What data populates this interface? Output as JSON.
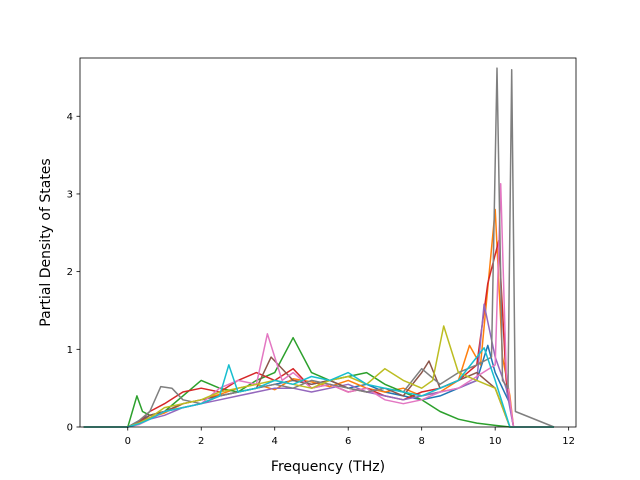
{
  "chart_data": {
    "type": "line",
    "title": "",
    "xlabel": "Frequency (THz)",
    "ylabel": "Partial Density of States",
    "xlim": [
      -1.3,
      12.2
    ],
    "ylim": [
      0,
      4.75
    ],
    "x_ticks": [
      0,
      2,
      4,
      6,
      8,
      10,
      12
    ],
    "y_ticks": [
      0,
      1,
      2,
      3,
      4
    ],
    "grid": false,
    "legend": "none",
    "colors": [
      "#1f77b4",
      "#ff7f0e",
      "#2ca02c",
      "#d62728",
      "#9467bd",
      "#8c564b",
      "#e377c2",
      "#7f7f7f",
      "#bcbd22",
      "#17becf"
    ],
    "series": [
      {
        "x": [
          -1.2,
          0.0,
          0.3,
          0.6,
          1.0,
          1.5,
          2.0,
          2.5,
          3.0,
          3.5,
          4.0,
          4.5,
          5.0,
          5.5,
          6.0,
          6.5,
          7.0,
          7.5,
          8.0,
          8.5,
          9.0,
          9.5,
          9.8,
          10.0,
          10.2,
          10.4,
          10.5,
          11.6
        ],
        "y": [
          0,
          0,
          0.08,
          0.15,
          0.2,
          0.25,
          0.3,
          0.4,
          0.45,
          0.5,
          0.55,
          0.6,
          0.55,
          0.6,
          0.5,
          0.55,
          0.45,
          0.4,
          0.35,
          0.4,
          0.5,
          0.6,
          1.05,
          0.7,
          0.5,
          0.3,
          0,
          0
        ]
      },
      {
        "x": [
          -1.2,
          0.0,
          0.3,
          0.6,
          1.0,
          1.5,
          2.0,
          2.5,
          3.0,
          3.5,
          4.0,
          4.5,
          5.0,
          5.5,
          6.0,
          6.5,
          7.0,
          7.5,
          8.0,
          8.5,
          9.0,
          9.3,
          9.6,
          10.0,
          10.2,
          10.4,
          10.5,
          11.6
        ],
        "y": [
          0,
          0,
          0.05,
          0.12,
          0.18,
          0.3,
          0.35,
          0.42,
          0.5,
          0.55,
          0.48,
          0.62,
          0.58,
          0.52,
          0.6,
          0.5,
          0.45,
          0.5,
          0.4,
          0.45,
          0.6,
          1.05,
          0.8,
          2.8,
          0.9,
          0.4,
          0,
          0
        ]
      },
      {
        "x": [
          -1.2,
          0.0,
          0.25,
          0.4,
          0.6,
          1.0,
          1.5,
          2.0,
          2.5,
          3.0,
          3.5,
          4.0,
          4.5,
          5.0,
          5.5,
          6.0,
          6.5,
          7.0,
          7.5,
          8.0,
          8.5,
          9.0,
          9.5,
          10.0,
          10.4,
          11.6
        ],
        "y": [
          0,
          0,
          0.4,
          0.2,
          0.15,
          0.2,
          0.4,
          0.6,
          0.5,
          0.45,
          0.6,
          0.7,
          1.15,
          0.7,
          0.6,
          0.65,
          0.7,
          0.55,
          0.45,
          0.35,
          0.2,
          0.1,
          0.05,
          0.02,
          0,
          0
        ]
      },
      {
        "x": [
          -1.2,
          0.0,
          0.3,
          0.6,
          1.0,
          1.5,
          2.0,
          2.5,
          3.0,
          3.5,
          4.0,
          4.5,
          5.0,
          5.5,
          6.0,
          6.5,
          7.0,
          7.5,
          8.0,
          8.5,
          9.0,
          9.5,
          9.8,
          10.1,
          10.3,
          10.5,
          11.6
        ],
        "y": [
          0,
          0,
          0.06,
          0.2,
          0.3,
          0.45,
          0.5,
          0.45,
          0.6,
          0.7,
          0.6,
          0.75,
          0.5,
          0.55,
          0.45,
          0.5,
          0.4,
          0.35,
          0.45,
          0.5,
          0.6,
          0.8,
          1.85,
          2.4,
          0.6,
          0,
          0
        ]
      },
      {
        "x": [
          -1.2,
          0.0,
          0.3,
          0.6,
          1.0,
          1.5,
          2.0,
          2.5,
          3.0,
          3.5,
          4.0,
          4.5,
          5.0,
          5.5,
          6.0,
          6.5,
          7.0,
          7.5,
          8.0,
          8.5,
          9.0,
          9.5,
          9.7,
          10.0,
          10.3,
          10.5,
          11.6
        ],
        "y": [
          0,
          0,
          0.04,
          0.1,
          0.15,
          0.25,
          0.3,
          0.35,
          0.4,
          0.45,
          0.5,
          0.5,
          0.45,
          0.5,
          0.55,
          0.45,
          0.4,
          0.35,
          0.4,
          0.45,
          0.5,
          0.6,
          1.58,
          0.9,
          0.5,
          0,
          0
        ]
      },
      {
        "x": [
          -1.2,
          0.0,
          0.3,
          0.6,
          1.0,
          1.5,
          2.0,
          2.5,
          3.0,
          3.5,
          3.9,
          4.5,
          5.0,
          5.5,
          6.0,
          6.5,
          7.0,
          7.5,
          8.0,
          8.2,
          8.5,
          9.0,
          9.5,
          10.0,
          10.4,
          11.6
        ],
        "y": [
          0,
          0,
          0.05,
          0.15,
          0.2,
          0.3,
          0.35,
          0.4,
          0.45,
          0.5,
          0.9,
          0.6,
          0.55,
          0.6,
          0.5,
          0.45,
          0.5,
          0.4,
          0.7,
          0.85,
          0.5,
          0.6,
          0.7,
          0.5,
          0,
          0
        ]
      },
      {
        "x": [
          -1.2,
          0.0,
          0.3,
          0.6,
          1.0,
          1.5,
          2.0,
          2.5,
          3.0,
          3.5,
          3.8,
          4.2,
          4.5,
          5.0,
          5.5,
          6.0,
          6.5,
          7.0,
          7.5,
          8.0,
          8.5,
          9.0,
          9.5,
          10.0,
          10.15,
          10.3,
          10.5,
          11.6
        ],
        "y": [
          0,
          0,
          0.03,
          0.1,
          0.2,
          0.25,
          0.3,
          0.5,
          0.6,
          0.55,
          1.2,
          0.6,
          0.7,
          0.5,
          0.55,
          0.45,
          0.5,
          0.35,
          0.3,
          0.35,
          0.45,
          0.5,
          0.65,
          0.8,
          3.13,
          0.7,
          0,
          0
        ]
      },
      {
        "x": [
          -1.2,
          0.0,
          0.3,
          0.6,
          0.9,
          1.2,
          1.5,
          2.0,
          2.5,
          3.0,
          3.5,
          4.0,
          4.5,
          5.0,
          5.5,
          6.0,
          6.5,
          7.0,
          7.5,
          8.0,
          8.5,
          9.0,
          9.5,
          9.9,
          10.05,
          10.2,
          10.35,
          10.45,
          10.55,
          11.6
        ],
        "y": [
          0,
          0,
          0.08,
          0.2,
          0.52,
          0.5,
          0.35,
          0.3,
          0.4,
          0.45,
          0.5,
          0.55,
          0.5,
          0.6,
          0.55,
          0.5,
          0.45,
          0.5,
          0.45,
          0.75,
          0.55,
          0.7,
          0.8,
          0.9,
          4.62,
          0.6,
          0.5,
          4.6,
          0.2,
          0
        ]
      },
      {
        "x": [
          -1.2,
          0.0,
          0.3,
          0.6,
          1.0,
          1.5,
          2.0,
          2.5,
          3.0,
          3.5,
          4.0,
          4.5,
          5.0,
          5.5,
          6.0,
          6.5,
          7.0,
          7.5,
          8.0,
          8.3,
          8.6,
          9.0,
          9.5,
          10.0,
          10.4,
          11.6
        ],
        "y": [
          0,
          0,
          0.05,
          0.12,
          0.25,
          0.3,
          0.35,
          0.45,
          0.5,
          0.55,
          0.6,
          0.55,
          0.5,
          0.6,
          0.65,
          0.55,
          0.75,
          0.6,
          0.5,
          0.6,
          1.3,
          0.7,
          0.6,
          0.5,
          0,
          0
        ]
      },
      {
        "x": [
          -1.2,
          0.0,
          0.3,
          0.6,
          1.0,
          1.5,
          2.0,
          2.5,
          2.75,
          3.0,
          3.5,
          4.0,
          4.5,
          5.0,
          5.5,
          6.0,
          6.5,
          7.0,
          7.5,
          8.0,
          8.5,
          9.0,
          9.5,
          9.7,
          10.0,
          10.4,
          11.6
        ],
        "y": [
          0,
          0,
          0.04,
          0.1,
          0.2,
          0.25,
          0.3,
          0.4,
          0.8,
          0.45,
          0.5,
          0.6,
          0.55,
          0.65,
          0.6,
          0.7,
          0.55,
          0.5,
          0.45,
          0.4,
          0.5,
          0.6,
          0.9,
          1.02,
          0.6,
          0,
          0
        ]
      }
    ]
  }
}
